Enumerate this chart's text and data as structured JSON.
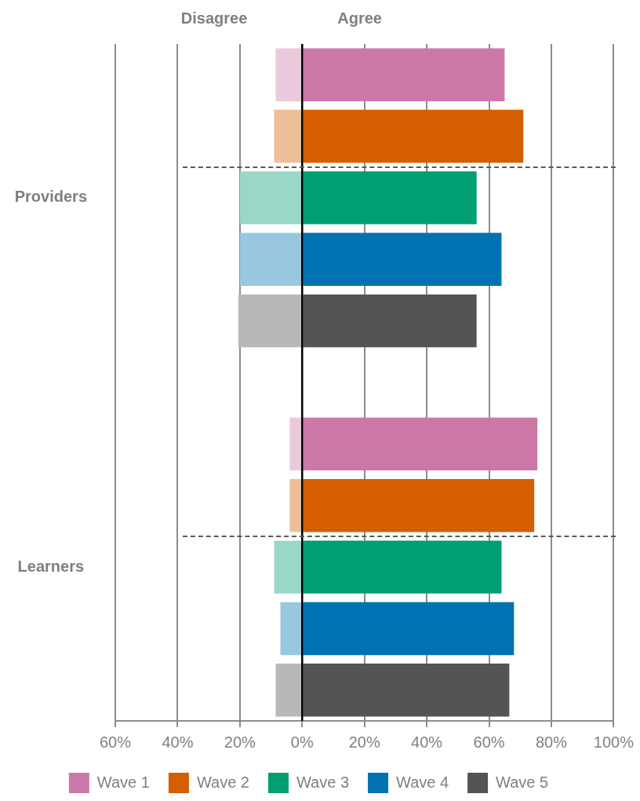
{
  "chart_data": {
    "type": "bar",
    "orientation": "horizontal",
    "stacked": true,
    "categories": [
      null,
      null,
      "Providers",
      null,
      null,
      null,
      null,
      null,
      "Learners",
      null,
      null
    ],
    "series": [
      {
        "name": "Wave 1",
        "color": "#cc79a7",
        "values": [
          65,
          null,
          null,
          null,
          null,
          null,
          75.5,
          null,
          null,
          null,
          null
        ]
      },
      {
        "color": "#ebc9dc",
        "values": [
          -8.5,
          null,
          null,
          null,
          null,
          null,
          -4,
          null,
          null,
          null,
          null
        ]
      },
      {
        "name": "Wave 2",
        "color": "#d55e00",
        "values": [
          null,
          71,
          null,
          null,
          null,
          null,
          null,
          74.5,
          null,
          null,
          null
        ]
      },
      {
        "color": "#ecbf99",
        "values": [
          null,
          -9,
          null,
          null,
          null,
          null,
          null,
          -4,
          null,
          null,
          null
        ]
      },
      {
        "name": "Wave 3",
        "color": "#009e73",
        "values": [
          null,
          null,
          56,
          null,
          null,
          null,
          null,
          null,
          64,
          null,
          null
        ]
      },
      {
        "color": "#99d8c7",
        "values": [
          null,
          null,
          -20,
          null,
          null,
          null,
          null,
          null,
          -9,
          null,
          null
        ]
      },
      {
        "name": "Wave 4",
        "color": "#0072b2",
        "values": [
          null,
          null,
          null,
          64,
          null,
          null,
          null,
          null,
          null,
          68,
          null
        ]
      },
      {
        "color": "#99c7e0",
        "values": [
          null,
          null,
          null,
          -20,
          null,
          null,
          null,
          null,
          null,
          -7,
          null
        ]
      },
      {
        "name": "Wave 5",
        "color": "#545454",
        "values": [
          null,
          null,
          null,
          null,
          56,
          null,
          null,
          null,
          null,
          null,
          66.5
        ]
      },
      {
        "color": "#b8b8b8",
        "values": [
          null,
          null,
          null,
          null,
          -20.5,
          null,
          null,
          null,
          null,
          null,
          -8.5
        ]
      }
    ],
    "xlim": [
      -60,
      100
    ],
    "xticks": [
      {
        "value": -60,
        "label": "60%"
      },
      {
        "value": -40,
        "label": "40%"
      },
      {
        "value": -20,
        "label": "20%"
      },
      {
        "value": 0,
        "label": "0%"
      },
      {
        "value": 20,
        "label": "20%"
      },
      {
        "value": 40,
        "label": "40%"
      },
      {
        "value": 60,
        "label": "60%"
      },
      {
        "value": 80,
        "label": "80%"
      },
      {
        "value": 100,
        "label": "100%"
      }
    ],
    "grid": "x",
    "legend": "bottom",
    "annotations": [
      "Disagree",
      "Agree"
    ]
  }
}
